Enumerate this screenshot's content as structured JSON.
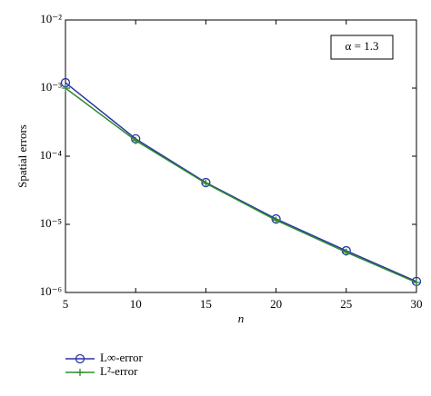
{
  "chart_data": {
    "type": "line",
    "x_label": "n",
    "y_label": "Spatial errors",
    "annotation": "α = 1.3",
    "x": [
      5,
      10,
      15,
      20,
      25,
      30
    ],
    "series": [
      {
        "name": "L∞-error",
        "color": "#2b35a6",
        "marker": "circle",
        "values": [
          0.0012,
          0.00018,
          4.1e-05,
          1.2e-05,
          4.1e-06,
          1.45e-06
        ]
      },
      {
        "name": "L²-error",
        "color": "#2e8b2e",
        "marker": "plus",
        "values": [
          0.001,
          0.00017,
          4e-05,
          1.15e-05,
          3.9e-06,
          1.4e-06
        ]
      }
    ],
    "xlim": [
      5,
      30
    ],
    "xticks": [
      5,
      10,
      15,
      20,
      25,
      30
    ],
    "ylim": [
      1e-06,
      0.01
    ],
    "yticks": [
      {
        "value": 1e-06,
        "label": "10⁻⁶"
      },
      {
        "value": 1e-05,
        "label": "10⁻⁵"
      },
      {
        "value": 0.0001,
        "label": "10⁻⁴"
      },
      {
        "value": 0.001,
        "label": "10⁻³"
      },
      {
        "value": 0.01,
        "label": "10⁻²"
      }
    ],
    "y_scale": "log",
    "grid": false,
    "legend": "below"
  }
}
